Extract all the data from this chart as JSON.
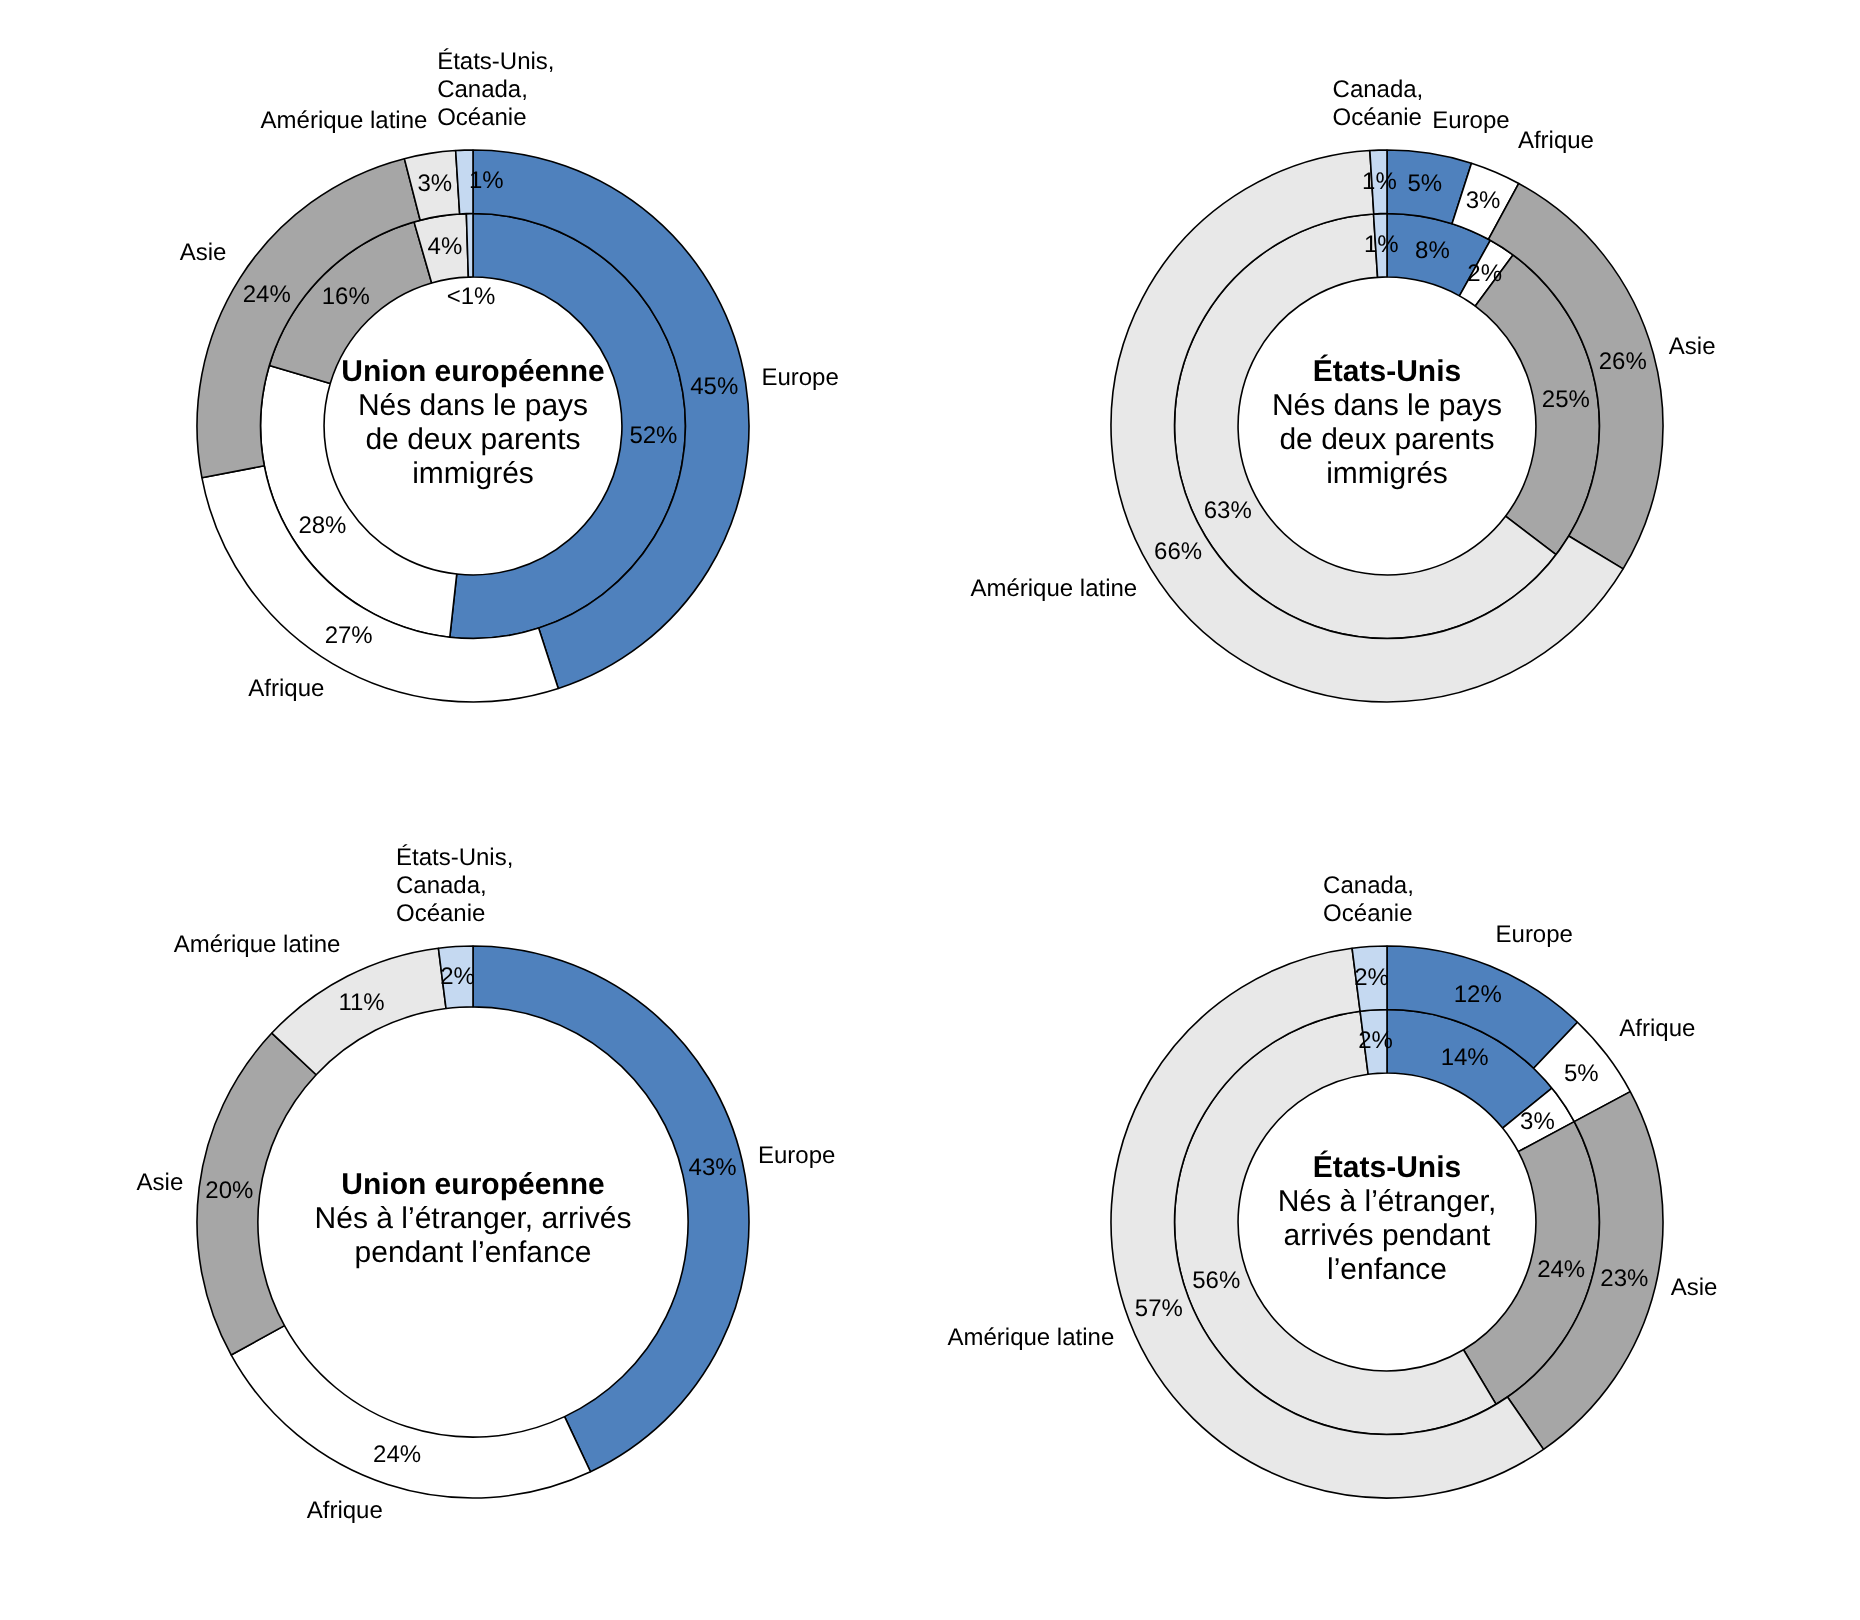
{
  "chart_data": [
    {
      "type": "donut",
      "title": "Union européenne",
      "subtitle": "Nés dans le pays de deux parents immigrés",
      "categories": [
        "Europe",
        "Afrique",
        "Asie",
        "Amérique latine",
        "États-Unis, Canada, Océanie"
      ],
      "colors": [
        "#4f81bd",
        "#ffffff",
        "#a6a6a6",
        "#e8e8e8",
        "#c5d9f1"
      ],
      "series": [
        {
          "values": [
            45,
            27,
            24,
            3,
            1
          ],
          "value_labels": [
            "45%",
            "27%",
            "24%",
            "3%",
            "1%"
          ]
        },
        {
          "values": [
            52,
            28,
            16,
            4,
            0.5
          ],
          "value_labels": [
            "52%",
            "28%",
            "16%",
            "4%",
            "<1%"
          ]
        }
      ]
    },
    {
      "type": "donut",
      "title": "États-Unis",
      "subtitle": "Nés dans le pays de deux parents immigrés",
      "categories": [
        "Europe",
        "Afrique",
        "Asie",
        "Amérique latine",
        "Canada, Océanie"
      ],
      "colors": [
        "#4f81bd",
        "#ffffff",
        "#a6a6a6",
        "#e8e8e8",
        "#c5d9f1"
      ],
      "series": [
        {
          "values": [
            5,
            3,
            26,
            66,
            1
          ],
          "value_labels": [
            "5%",
            "3%",
            "26%",
            "66%",
            "1%"
          ]
        },
        {
          "values": [
            8,
            2,
            25,
            63,
            1
          ],
          "value_labels": [
            "8%",
            "2%",
            "25%",
            "63%",
            "1%"
          ]
        }
      ]
    },
    {
      "type": "donut",
      "title": "Union européenne",
      "subtitle": "Nés à l’étranger, arrivés pendant l’enfance",
      "categories": [
        "Europe",
        "Afrique",
        "Asie",
        "Amérique latine",
        "États-Unis, Canada, Océanie"
      ],
      "colors": [
        "#4f81bd",
        "#ffffff",
        "#a6a6a6",
        "#e8e8e8",
        "#c5d9f1"
      ],
      "series": [
        {
          "values": [
            43,
            24,
            20,
            11,
            2
          ],
          "value_labels": [
            "43%",
            "24%",
            "20%",
            "11%",
            "2%"
          ]
        }
      ]
    },
    {
      "type": "donut",
      "title": "États-Unis",
      "subtitle": "Nés à l’étranger, arrivés pendant l’enfance",
      "categories": [
        "Europe",
        "Afrique",
        "Asie",
        "Amérique latine",
        "Canada, Océanie"
      ],
      "colors": [
        "#4f81bd",
        "#ffffff",
        "#a6a6a6",
        "#e8e8e8",
        "#c5d9f1"
      ],
      "series": [
        {
          "values": [
            12,
            5,
            23,
            57,
            2
          ],
          "value_labels": [
            "12%",
            "5%",
            "23%",
            "57%",
            "2%"
          ]
        },
        {
          "values": [
            14,
            3,
            24,
            56,
            2
          ],
          "value_labels": [
            "14%",
            "3%",
            "24%",
            "56%",
            "2%"
          ]
        }
      ]
    }
  ]
}
